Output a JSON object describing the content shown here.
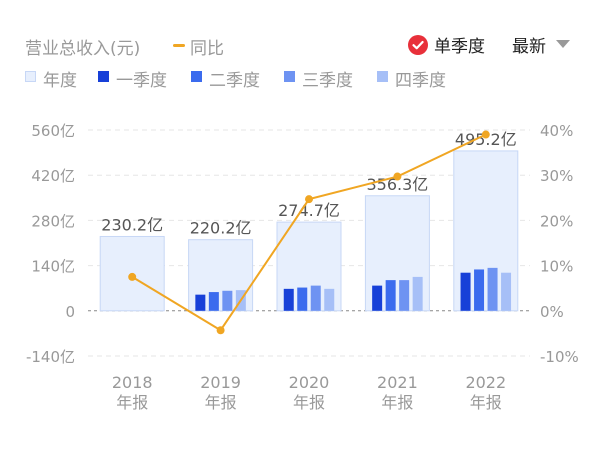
{
  "header": {
    "title": "营业总收入(元)",
    "yoy_label": "同比",
    "single_quarter_label": "单季度",
    "latest_label": "最新"
  },
  "legend": [
    {
      "label": "年度",
      "color": "#E7EFFD"
    },
    {
      "label": "一季度",
      "color": "#1740D8"
    },
    {
      "label": "二季度",
      "color": "#3B6BEE"
    },
    {
      "label": "三季度",
      "color": "#6E93F2"
    },
    {
      "label": "四季度",
      "color": "#A6BFF7"
    }
  ],
  "chart_data": {
    "type": "bar",
    "categories": [
      "2018\n年报",
      "2019\n年报",
      "2020\n年报",
      "2021\n年报",
      "2022\n年报"
    ],
    "y_left": {
      "ticks": [
        "560亿",
        "420亿",
        "280亿",
        "140亿",
        "0",
        "-140亿"
      ],
      "range": [
        -140,
        560
      ],
      "unit": "亿"
    },
    "y_right": {
      "ticks": [
        "40%",
        "30%",
        "20%",
        "10%",
        "0%",
        "-10%"
      ],
      "range": [
        -10,
        40
      ],
      "unit": "%"
    },
    "annual": {
      "values": [
        230.2,
        220.2,
        274.7,
        356.3,
        495.2
      ],
      "labels": [
        "230.2亿",
        "220.2亿",
        "274.7亿",
        "356.3亿",
        "495.2亿"
      ]
    },
    "quarters": [
      {
        "name": "一季度",
        "values": [
          null,
          50,
          68,
          78,
          118
        ]
      },
      {
        "name": "二季度",
        "values": [
          null,
          58,
          72,
          95,
          128
        ]
      },
      {
        "name": "三季度",
        "values": [
          null,
          62,
          78,
          95,
          133
        ]
      },
      {
        "name": "四季度",
        "values": [
          null,
          64,
          68,
          105,
          118
        ]
      }
    ],
    "yoy": {
      "name": "同比",
      "values": [
        7.5,
        -4.3,
        24.7,
        29.7,
        39.0
      ]
    },
    "colors": {
      "annual_fill": "#E7EFFD",
      "annual_stroke": "#C7D7F6",
      "yoy": "#F0A623"
    }
  }
}
